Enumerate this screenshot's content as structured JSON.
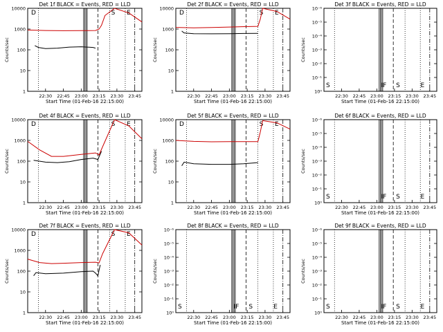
{
  "colors": {
    "events": "#000000",
    "lld": "#cc0000",
    "axes": "#000000"
  },
  "shared": {
    "xlabel": "Start Time (01-Feb-16 22:15:00)",
    "ylabel": "Counts/sec",
    "xticks": [
      "22:30",
      "22:45",
      "23:00",
      "23:15",
      "23:30",
      "23:45"
    ]
  },
  "chart_data": [
    {
      "type": "line",
      "title": "Det 1f BLACK = Events, RED = LLD",
      "scale": "log",
      "yticks": [
        "1",
        "10",
        "100",
        "1000",
        "10000"
      ],
      "annotations": [
        "D",
        "S",
        "E"
      ],
      "series": [
        {
          "name": "Events",
          "x": [
            "22:21",
            "22:24",
            "22:30",
            "22:40",
            "22:50",
            "23:00",
            "23:10",
            "23:12"
          ],
          "y": [
            160,
            130,
            115,
            120,
            135,
            140,
            130,
            120
          ]
        },
        {
          "name": "LLD",
          "x": [
            "22:15",
            "22:30",
            "22:45",
            "23:00",
            "23:12",
            "23:15",
            "23:17",
            "23:20",
            "23:28",
            "23:40",
            "23:51"
          ],
          "y": [
            900,
            850,
            830,
            840,
            850,
            1000,
            1500,
            4500,
            10000,
            6000,
            2200
          ]
        }
      ]
    },
    {
      "type": "line",
      "title": "Det 2f BLACK = Events, RED = LLD",
      "scale": "log",
      "yticks": [
        "1",
        "10",
        "100",
        "1000",
        "10000"
      ],
      "annotations": [
        "D",
        "S",
        "E"
      ],
      "series": [
        {
          "name": "Events",
          "x": [
            "22:20",
            "22:22",
            "22:30",
            "22:45",
            "23:00",
            "23:12",
            "23:24"
          ],
          "y": [
            800,
            650,
            600,
            590,
            600,
            610,
            620
          ]
        },
        {
          "name": "LLD",
          "x": [
            "22:15",
            "22:30",
            "22:45",
            "23:00",
            "23:10",
            "23:24",
            "23:26",
            "23:28",
            "23:40",
            "23:51"
          ],
          "y": [
            1200,
            1150,
            1180,
            1250,
            1300,
            1350,
            3000,
            10000,
            7000,
            3000
          ]
        }
      ]
    },
    {
      "type": "line",
      "title": "Det 3f BLACK = Events, RED = LLD",
      "scale": "log",
      "yticks": [
        "10⁰",
        "10⁻¹",
        "10⁻²",
        "10⁻³",
        "10⁻⁴",
        "10⁻⁵",
        "10⁻⁶"
      ],
      "annotations": [
        "S",
        "IF",
        "S",
        "E"
      ],
      "series": []
    },
    {
      "type": "line",
      "title": "Det 4f BLACK = Events, RED = LLD",
      "scale": "log",
      "yticks": [
        "1",
        "10",
        "100",
        "1000",
        "10000"
      ],
      "annotations": [
        "D",
        "S",
        "E"
      ],
      "series": [
        {
          "name": "Events",
          "x": [
            "22:20",
            "22:30",
            "22:40",
            "22:50",
            "23:00",
            "23:10",
            "23:12",
            "23:14",
            "23:17"
          ],
          "y": [
            110,
            90,
            85,
            95,
            120,
            140,
            130,
            120,
            300
          ]
        },
        {
          "name": "LLD",
          "x": [
            "22:15",
            "22:25",
            "22:35",
            "22:45",
            "23:00",
            "23:12",
            "23:15",
            "23:18",
            "23:28",
            "23:40",
            "23:51"
          ],
          "y": [
            900,
            350,
            170,
            170,
            210,
            250,
            200,
            500,
            10000,
            5000,
            1200
          ]
        }
      ]
    },
    {
      "type": "line",
      "title": "Det 5f BLACK = Events, RED = LLD",
      "scale": "log",
      "yticks": [
        "1",
        "10",
        "100",
        "1000",
        "10000"
      ],
      "annotations": [
        "D",
        "S",
        "E"
      ],
      "series": [
        {
          "name": "Events",
          "x": [
            "22:20",
            "22:22",
            "22:30",
            "22:45",
            "23:00",
            "23:12",
            "23:24"
          ],
          "y": [
            60,
            90,
            75,
            70,
            70,
            75,
            85
          ]
        },
        {
          "name": "LLD",
          "x": [
            "22:15",
            "22:30",
            "22:45",
            "23:00",
            "23:10",
            "23:24",
            "23:26",
            "23:28",
            "23:40",
            "23:51"
          ],
          "y": [
            1000,
            900,
            860,
            870,
            880,
            880,
            2500,
            9000,
            7000,
            3500
          ]
        }
      ]
    },
    {
      "type": "line",
      "title": "Det 6f BLACK = Events, RED = LLD",
      "scale": "log",
      "yticks": [
        "10⁰",
        "10⁻¹",
        "10⁻²",
        "10⁻³",
        "10⁻⁴",
        "10⁻⁵",
        "10⁻⁶"
      ],
      "annotations": [
        "S",
        "IF",
        "S",
        "E"
      ],
      "series": []
    },
    {
      "type": "line",
      "title": "Det 7f BLACK = Events, RED = LLD",
      "scale": "log",
      "yticks": [
        "1",
        "10",
        "100",
        "1000",
        "10000"
      ],
      "annotations": [
        "D",
        "S",
        "E"
      ],
      "series": [
        {
          "name": "Events",
          "x": [
            "22:20",
            "22:22",
            "22:30",
            "22:45",
            "23:00",
            "23:10",
            "23:12",
            "23:14",
            "23:16"
          ],
          "y": [
            60,
            85,
            75,
            80,
            95,
            100,
            80,
            60,
            200
          ]
        },
        {
          "name": "LLD",
          "x": [
            "22:15",
            "22:25",
            "22:35",
            "22:45",
            "23:00",
            "23:12",
            "23:15",
            "23:18",
            "23:28",
            "23:40",
            "23:51"
          ],
          "y": [
            380,
            260,
            230,
            240,
            260,
            270,
            250,
            700,
            10000,
            7000,
            1800
          ]
        }
      ]
    },
    {
      "type": "line",
      "title": "Det 8f BLACK = Events, RED = LLD",
      "scale": "log",
      "yticks": [
        "10⁰",
        "10⁻¹",
        "10⁻²",
        "10⁻³",
        "10⁻⁴",
        "10⁻⁵",
        "10⁻⁶"
      ],
      "annotations": [
        "S",
        "IF",
        "S",
        "E"
      ],
      "series": []
    },
    {
      "type": "line",
      "title": "Det 9f BLACK = Events, RED = LLD",
      "scale": "log",
      "yticks": [
        "10⁰",
        "10⁻¹",
        "10⁻²",
        "10⁻³",
        "10⁻⁴",
        "10⁻⁵",
        "10⁻⁶"
      ],
      "annotations": [
        "S",
        "IF",
        "S",
        "E"
      ],
      "series": []
    }
  ]
}
